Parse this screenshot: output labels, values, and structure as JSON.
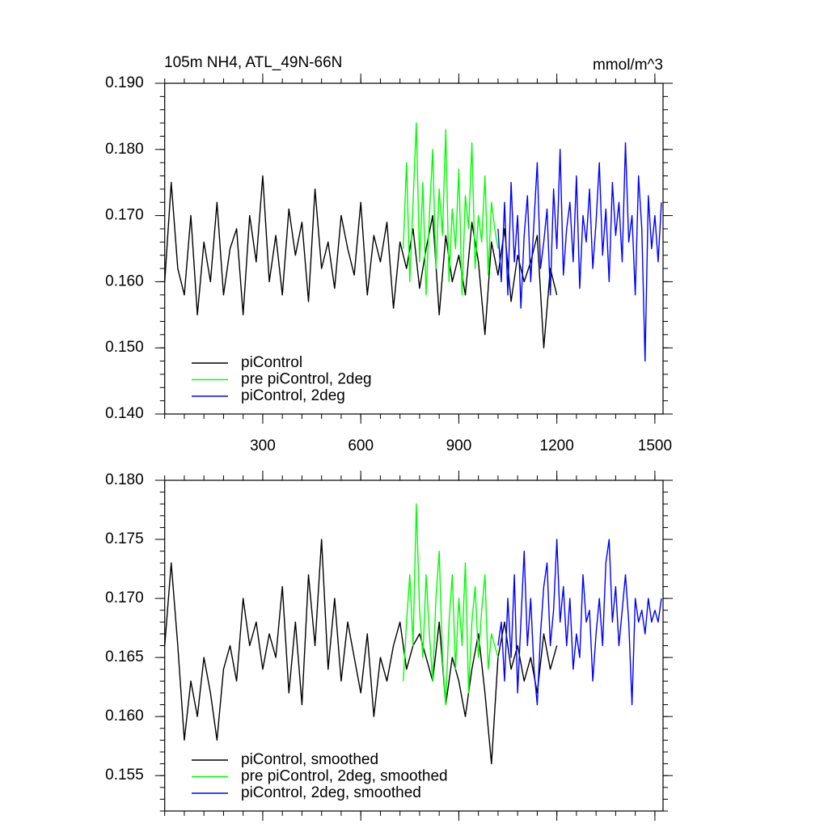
{
  "chart_data": [
    {
      "type": "line",
      "title": "105m NH4, ATL_49N-66N",
      "units": "mmol/m^3",
      "xlim": [
        0,
        1525
      ],
      "xticks": [
        300,
        600,
        900,
        1200,
        1500
      ],
      "ylim": [
        0.14,
        0.19
      ],
      "yticks": [
        {
          "value": 0.14,
          "label": "0.140"
        },
        {
          "value": 0.15,
          "label": "0.150"
        },
        {
          "value": 0.16,
          "label": "0.160"
        },
        {
          "value": 0.17,
          "label": "0.170"
        },
        {
          "value": 0.18,
          "label": "0.180"
        },
        {
          "value": 0.19,
          "label": "0.190"
        }
      ],
      "legend": "lower left",
      "series": [
        {
          "name": "piControl",
          "color": "#000000",
          "x": [
            0,
            20,
            40,
            60,
            80,
            100,
            120,
            140,
            160,
            180,
            200,
            220,
            240,
            260,
            280,
            300,
            320,
            340,
            360,
            380,
            400,
            420,
            440,
            460,
            480,
            500,
            520,
            540,
            560,
            580,
            600,
            620,
            640,
            660,
            680,
            700,
            720,
            740,
            760,
            780,
            800,
            820,
            840,
            860,
            880,
            900,
            920,
            940,
            960,
            980,
            1000,
            1020,
            1040,
            1060,
            1080,
            1100,
            1120,
            1140,
            1160,
            1180,
            1200
          ],
          "values": [
            0.16,
            0.175,
            0.162,
            0.158,
            0.17,
            0.155,
            0.166,
            0.16,
            0.172,
            0.158,
            0.165,
            0.168,
            0.155,
            0.17,
            0.163,
            0.176,
            0.16,
            0.167,
            0.158,
            0.171,
            0.164,
            0.169,
            0.157,
            0.174,
            0.162,
            0.166,
            0.159,
            0.17,
            0.165,
            0.161,
            0.172,
            0.158,
            0.167,
            0.163,
            0.169,
            0.156,
            0.166,
            0.162,
            0.168,
            0.159,
            0.165,
            0.17,
            0.155,
            0.167,
            0.16,
            0.164,
            0.158,
            0.169,
            0.163,
            0.152,
            0.166,
            0.161,
            0.168,
            0.157,
            0.164,
            0.16,
            0.163,
            0.167,
            0.15,
            0.162,
            0.158
          ]
        },
        {
          "name": "pre piControl, 2deg",
          "color": "#00ff00",
          "x": [
            730,
            740,
            750,
            760,
            770,
            780,
            790,
            800,
            810,
            820,
            830,
            840,
            850,
            860,
            870,
            880,
            890,
            900,
            910,
            920,
            930,
            940,
            950,
            960,
            970,
            980,
            990,
            1000,
            1010,
            1020
          ],
          "values": [
            0.165,
            0.178,
            0.16,
            0.172,
            0.184,
            0.163,
            0.175,
            0.158,
            0.17,
            0.18,
            0.162,
            0.174,
            0.167,
            0.183,
            0.16,
            0.171,
            0.165,
            0.177,
            0.158,
            0.173,
            0.168,
            0.181,
            0.162,
            0.17,
            0.166,
            0.176,
            0.161,
            0.172,
            0.168,
            0.165
          ]
        },
        {
          "name": "piControl, 2deg",
          "color": "#0000ff",
          "x": [
            1020,
            1030,
            1040,
            1050,
            1060,
            1070,
            1080,
            1090,
            1100,
            1110,
            1120,
            1130,
            1140,
            1150,
            1160,
            1170,
            1180,
            1190,
            1200,
            1210,
            1220,
            1230,
            1240,
            1250,
            1260,
            1270,
            1280,
            1290,
            1300,
            1310,
            1320,
            1330,
            1340,
            1350,
            1360,
            1370,
            1380,
            1390,
            1400,
            1410,
            1420,
            1430,
            1440,
            1450,
            1460,
            1470,
            1480,
            1490,
            1500,
            1510,
            1520
          ],
          "values": [
            0.168,
            0.16,
            0.172,
            0.158,
            0.175,
            0.163,
            0.17,
            0.156,
            0.167,
            0.173,
            0.16,
            0.169,
            0.178,
            0.162,
            0.166,
            0.171,
            0.158,
            0.174,
            0.165,
            0.18,
            0.161,
            0.168,
            0.172,
            0.163,
            0.176,
            0.159,
            0.17,
            0.166,
            0.174,
            0.162,
            0.169,
            0.178,
            0.164,
            0.171,
            0.16,
            0.175,
            0.167,
            0.172,
            0.163,
            0.181,
            0.166,
            0.17,
            0.158,
            0.176,
            0.168,
            0.148,
            0.173,
            0.165,
            0.17,
            0.163,
            0.172
          ]
        }
      ]
    },
    {
      "type": "line",
      "xlim": [
        0,
        1525
      ],
      "xticks": [
        300,
        600,
        900,
        1200,
        1500
      ],
      "ylim": [
        0.152,
        0.18
      ],
      "yticks": [
        {
          "value": 0.155,
          "label": "0.155"
        },
        {
          "value": 0.16,
          "label": "0.160"
        },
        {
          "value": 0.165,
          "label": "0.165"
        },
        {
          "value": 0.17,
          "label": "0.170"
        },
        {
          "value": 0.175,
          "label": "0.175"
        },
        {
          "value": 0.18,
          "label": "0.180"
        }
      ],
      "legend": "lower left",
      "series": [
        {
          "name": "piControl, smoothed",
          "color": "#000000",
          "x": [
            0,
            20,
            40,
            60,
            80,
            100,
            120,
            140,
            160,
            180,
            200,
            220,
            240,
            260,
            280,
            300,
            320,
            340,
            360,
            380,
            400,
            420,
            440,
            460,
            480,
            500,
            520,
            540,
            560,
            580,
            600,
            620,
            640,
            660,
            680,
            700,
            720,
            740,
            760,
            780,
            800,
            820,
            840,
            860,
            880,
            900,
            920,
            940,
            960,
            980,
            1000,
            1020,
            1040,
            1060,
            1080,
            1100,
            1120,
            1140,
            1160,
            1180,
            1200
          ],
          "values": [
            0.166,
            0.173,
            0.166,
            0.158,
            0.163,
            0.16,
            0.165,
            0.162,
            0.158,
            0.164,
            0.166,
            0.163,
            0.17,
            0.166,
            0.168,
            0.164,
            0.167,
            0.165,
            0.171,
            0.162,
            0.168,
            0.161,
            0.172,
            0.166,
            0.175,
            0.164,
            0.17,
            0.163,
            0.168,
            0.165,
            0.162,
            0.167,
            0.16,
            0.165,
            0.163,
            0.166,
            0.168,
            0.164,
            0.166,
            0.167,
            0.165,
            0.163,
            0.168,
            0.161,
            0.165,
            0.163,
            0.16,
            0.164,
            0.167,
            0.162,
            0.156,
            0.165,
            0.168,
            0.164,
            0.166,
            0.163,
            0.165,
            0.162,
            0.167,
            0.164,
            0.166
          ]
        },
        {
          "name": "pre piControl, 2deg, smoothed",
          "color": "#00ff00",
          "x": [
            730,
            740,
            750,
            760,
            770,
            780,
            790,
            800,
            810,
            820,
            830,
            840,
            850,
            860,
            870,
            880,
            890,
            900,
            910,
            920,
            930,
            940,
            950,
            960,
            970,
            980,
            990,
            1000,
            1010,
            1020
          ],
          "values": [
            0.163,
            0.168,
            0.172,
            0.166,
            0.178,
            0.169,
            0.165,
            0.172,
            0.167,
            0.163,
            0.17,
            0.174,
            0.165,
            0.161,
            0.168,
            0.172,
            0.164,
            0.17,
            0.166,
            0.173,
            0.162,
            0.168,
            0.171,
            0.165,
            0.169,
            0.172,
            0.164,
            0.167,
            0.166,
            0.165
          ]
        },
        {
          "name": "piControl, 2deg, smoothed",
          "color": "#0000ff",
          "x": [
            1020,
            1030,
            1040,
            1050,
            1060,
            1070,
            1080,
            1090,
            1100,
            1110,
            1120,
            1130,
            1140,
            1150,
            1160,
            1170,
            1180,
            1190,
            1200,
            1210,
            1220,
            1230,
            1240,
            1250,
            1260,
            1270,
            1280,
            1290,
            1300,
            1310,
            1320,
            1330,
            1340,
            1350,
            1360,
            1370,
            1380,
            1390,
            1400,
            1410,
            1420,
            1430,
            1440,
            1450,
            1460,
            1470,
            1480,
            1490,
            1500,
            1510,
            1520
          ],
          "values": [
            0.166,
            0.168,
            0.163,
            0.17,
            0.165,
            0.172,
            0.162,
            0.168,
            0.174,
            0.166,
            0.17,
            0.164,
            0.161,
            0.167,
            0.171,
            0.173,
            0.166,
            0.169,
            0.175,
            0.168,
            0.171,
            0.166,
            0.17,
            0.164,
            0.167,
            0.165,
            0.172,
            0.168,
            0.169,
            0.163,
            0.167,
            0.17,
            0.166,
            0.173,
            0.175,
            0.168,
            0.171,
            0.166,
            0.169,
            0.172,
            0.168,
            0.161,
            0.17,
            0.168,
            0.169,
            0.167,
            0.17,
            0.168,
            0.169,
            0.168,
            0.17
          ]
        }
      ]
    }
  ]
}
